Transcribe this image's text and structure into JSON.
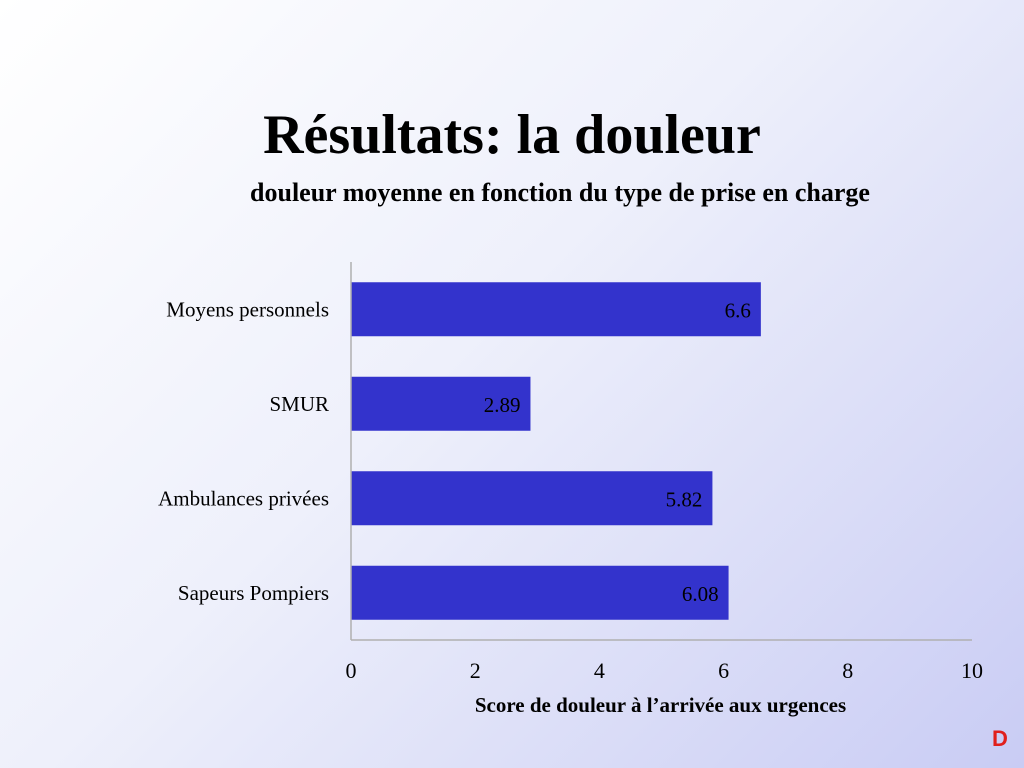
{
  "slide": {
    "title": "Résultats: la douleur",
    "corner_mark": "D",
    "corner_mark_color": "#e0201c"
  },
  "chart_data": {
    "type": "bar",
    "orientation": "horizontal",
    "title": "douleur moyenne en fonction du type de prise en charge",
    "xlabel": "Score de douleur à l’arrivée aux urgences",
    "ylabel": "",
    "xlim": [
      0,
      10
    ],
    "x_ticks": [
      "0",
      "2",
      "4",
      "6",
      "8",
      "10"
    ],
    "categories": [
      "Moyens personnels",
      "SMUR",
      "Ambulances privées",
      "Sapeurs Pompiers"
    ],
    "values": [
      6.6,
      2.89,
      5.82,
      6.08
    ],
    "value_labels": [
      "6.6",
      "2.89",
      "5.82",
      "6.08"
    ],
    "bar_color": "#3333cc",
    "grid": false,
    "legend": "none"
  }
}
